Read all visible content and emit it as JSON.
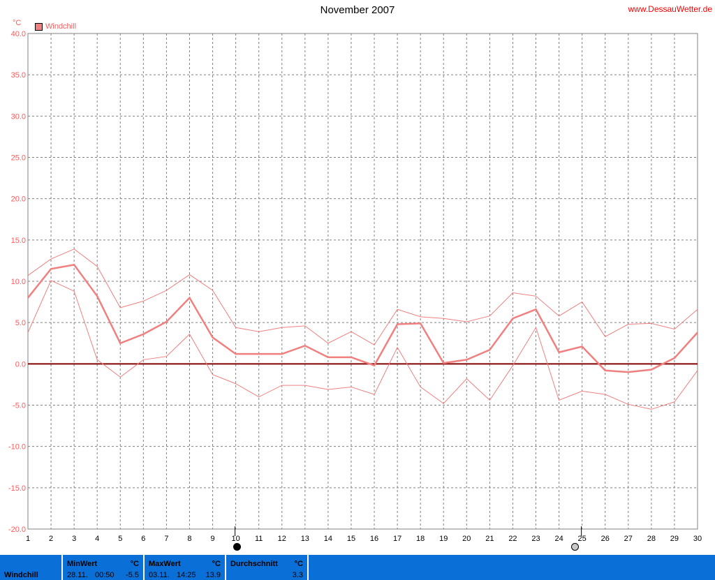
{
  "header": {
    "title": "November 2007",
    "site": "www.DessauWetter.de",
    "unit": "°C",
    "legend_label": "Windchill"
  },
  "chart_data": {
    "type": "line",
    "title": "November 2007",
    "ylabel": "°C",
    "ylim": [
      -20,
      40
    ],
    "y_ticks": [
      "40.0",
      "35.0",
      "30.0",
      "25.0",
      "20.0",
      "15.0",
      "10.0",
      "5.0",
      "0.0",
      "-5.0",
      "-10.0",
      "-15.0",
      "-20.0"
    ],
    "x": [
      1,
      2,
      3,
      4,
      5,
      6,
      7,
      8,
      9,
      10,
      11,
      12,
      13,
      14,
      15,
      16,
      17,
      18,
      19,
      20,
      21,
      22,
      23,
      24,
      25,
      26,
      27,
      28,
      29,
      30
    ],
    "series": [
      {
        "name": "Windchill",
        "values": [
          8.0,
          11.5,
          12.0,
          8.2,
          2.5,
          3.6,
          5.1,
          8.0,
          3.2,
          1.2,
          1.2,
          1.2,
          2.2,
          0.8,
          0.8,
          -0.2,
          4.8,
          4.9,
          0.1,
          0.5,
          1.7,
          5.5,
          6.6,
          1.4,
          2.1,
          -0.8,
          -1.0,
          -0.7,
          0.7,
          3.8
        ],
        "color": "#f08080"
      },
      {
        "values": [
          10.7,
          12.7,
          13.9,
          11.8,
          6.8,
          7.6,
          8.9,
          10.8,
          8.9,
          4.4,
          3.9,
          4.4,
          4.6,
          2.5,
          3.9,
          2.3,
          6.6,
          5.7,
          5.5,
          5.1,
          5.8,
          8.6,
          8.2,
          5.8,
          7.5,
          3.3,
          4.8,
          4.9,
          4.2,
          6.6
        ],
        "color": "#f08080"
      },
      {
        "values": [
          3.8,
          10.1,
          8.8,
          0.5,
          -1.6,
          0.5,
          0.9,
          3.6,
          -1.3,
          -2.4,
          -4.0,
          -2.6,
          -2.6,
          -3.1,
          -2.8,
          -3.7,
          2.0,
          -2.8,
          -4.8,
          -1.8,
          -4.4,
          -0.2,
          4.4,
          -4.4,
          -3.3,
          -3.7,
          -4.9,
          -5.5,
          -4.6,
          -0.8
        ],
        "color": "#f08080"
      }
    ],
    "zero_line_color": "#800000",
    "grid": true,
    "legend_position": "top-left"
  },
  "moon": {
    "new_moon_day": 10,
    "full_moon_day": 25
  },
  "footer": {
    "label": "Windchill",
    "min": {
      "header": "MinWert",
      "unit": "°C",
      "date": "28.11.",
      "time": "00:50",
      "value": "-5.5"
    },
    "max": {
      "header": "MaxWert",
      "unit": "°C",
      "date": "03.11.",
      "time": "14:25",
      "value": "13.9"
    },
    "avg": {
      "header": "Durchschnitt",
      "unit": "°C",
      "value": "3.3"
    }
  },
  "colors": {
    "series": "#f08080",
    "zero_line": "#800000",
    "footer_bg": "#0a6fd6",
    "site_link": "#ff0000",
    "axis_text": "#ff5a5a"
  }
}
